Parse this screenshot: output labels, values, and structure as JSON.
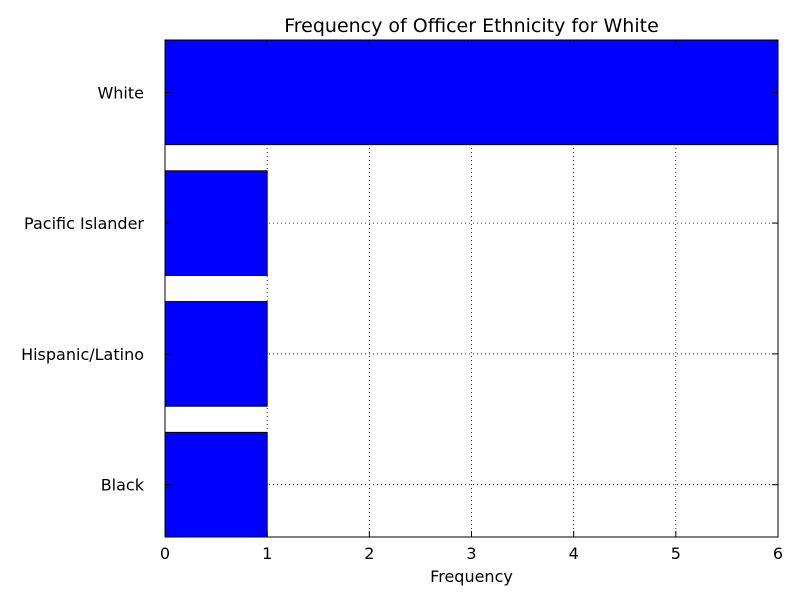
{
  "chart_data": {
    "type": "bar",
    "orientation": "horizontal",
    "title": "Frequency of Officer Ethnicity for White",
    "xlabel": "Frequency",
    "ylabel": "",
    "categories": [
      "Black",
      "Hispanic/Latino",
      "Pacific Islander",
      "White"
    ],
    "values": [
      1,
      1,
      1,
      6
    ],
    "xlim": [
      0,
      6
    ],
    "xticks": [
      "0",
      "1",
      "2",
      "3",
      "4",
      "5",
      "6"
    ],
    "grid": true,
    "bar_color": "#0000ff"
  }
}
